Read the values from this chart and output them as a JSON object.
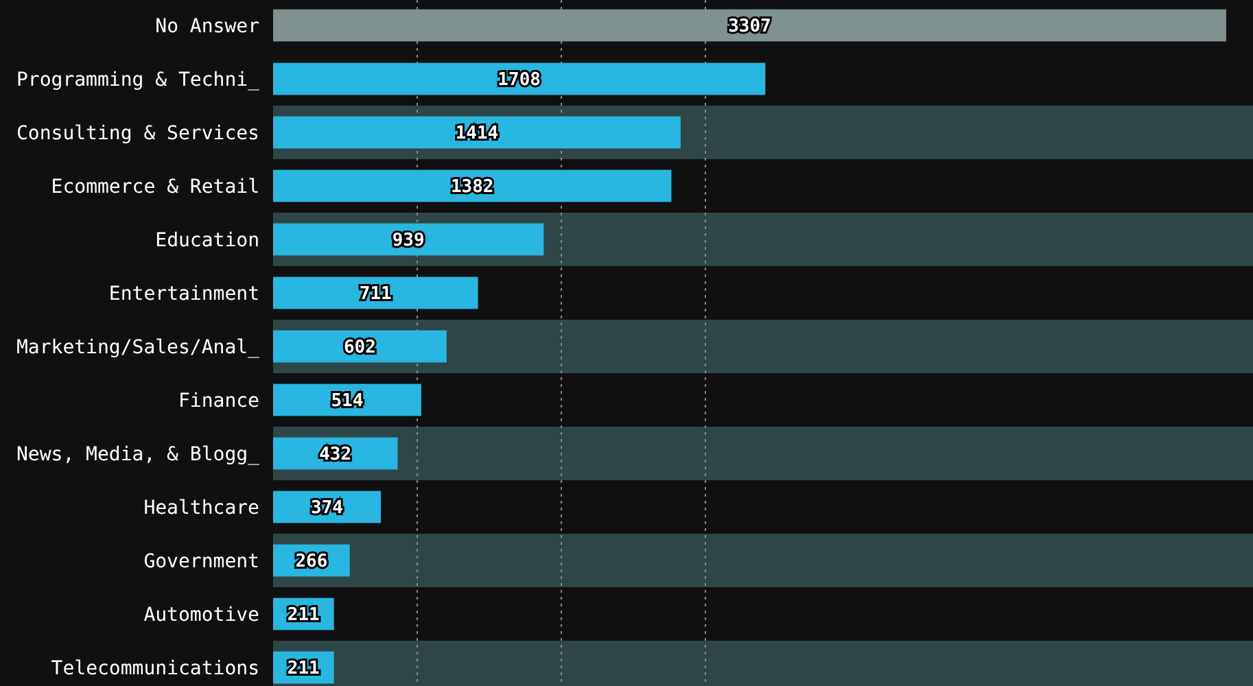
{
  "chart_data": {
    "type": "bar",
    "orientation": "horizontal",
    "categories": [
      "No Answer",
      "Programming & Techni_",
      "Consulting & Services",
      "Ecommerce & Retail",
      "Education",
      "Entertainment",
      "Marketing/Sales/Anal_",
      "Finance",
      "News, Media, & Blogg_",
      "Healthcare",
      "Government",
      "Automotive",
      "Telecommunications"
    ],
    "values": [
      3307,
      1708,
      1414,
      1382,
      939,
      711,
      602,
      514,
      432,
      374,
      266,
      211,
      211
    ],
    "colors": [
      "#7f9191",
      "#29b6e0",
      "#29b6e0",
      "#29b6e0",
      "#29b6e0",
      "#29b6e0",
      "#29b6e0",
      "#29b6e0",
      "#29b6e0",
      "#29b6e0",
      "#29b6e0",
      "#29b6e0",
      "#29b6e0"
    ],
    "xlim": [
      0,
      3400
    ],
    "xticks": [
      {
        "value": 500,
        "label": null
      },
      {
        "value": 1000,
        "label": null
      },
      {
        "value": 1500,
        "label": null
      }
    ],
    "grid": "x",
    "data_labels": true,
    "tick_labels": "y"
  }
}
